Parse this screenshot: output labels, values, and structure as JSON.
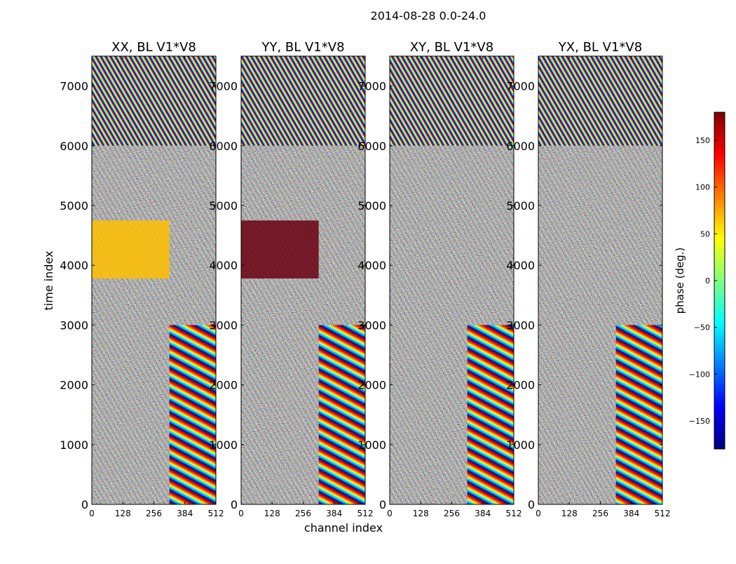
{
  "figure": {
    "suptitle": "2014-08-28 0.0-24.0"
  },
  "colorbar": {
    "label": "phase (deg.)",
    "ticks": [
      150,
      100,
      50,
      0,
      -50,
      -100,
      -150
    ],
    "tick_labels": [
      "150",
      "100",
      "50",
      "0",
      "−50",
      "−100",
      "−150"
    ],
    "range": [
      -180,
      180
    ],
    "colormap": "jet",
    "colors": [
      "#00007f",
      "#0000ff",
      "#007fff",
      "#00ffff",
      "#7fff7f",
      "#ffff00",
      "#ff7f00",
      "#ff0000",
      "#7f0000"
    ]
  },
  "chart_data": [
    {
      "type": "heatmap",
      "title": "XX, BL V1*V8",
      "xlabel": "",
      "ylabel": "time index",
      "xlim": [
        0,
        512
      ],
      "ylim": [
        0,
        7500
      ],
      "xticks": [
        "0",
        "128",
        "256",
        "384",
        "512"
      ],
      "yticks": [
        "0",
        "1000",
        "2000",
        "3000",
        "4000",
        "5000",
        "6000",
        "7000"
      ],
      "value_unit": "phase (deg.)",
      "value_range": [
        -180,
        180
      ]
    },
    {
      "type": "heatmap",
      "title": "YY, BL V1*V8",
      "xlabel": "channel index",
      "ylabel": "",
      "xlim": [
        0,
        512
      ],
      "ylim": [
        0,
        7500
      ],
      "xticks": [
        "0",
        "128",
        "256",
        "384",
        "512"
      ],
      "yticks": [
        "0",
        "1000",
        "2000",
        "3000",
        "4000",
        "5000",
        "6000",
        "7000"
      ],
      "value_unit": "phase (deg.)",
      "value_range": [
        -180,
        180
      ]
    },
    {
      "type": "heatmap",
      "title": "XY, BL V1*V8",
      "xlabel": "",
      "ylabel": "",
      "xlim": [
        0,
        512
      ],
      "ylim": [
        0,
        7500
      ],
      "xticks": [
        "0",
        "128",
        "256",
        "384",
        "512"
      ],
      "yticks": [
        "0",
        "1000",
        "2000",
        "3000",
        "4000",
        "5000",
        "6000",
        "7000"
      ],
      "value_unit": "phase (deg.)",
      "value_range": [
        -180,
        180
      ]
    },
    {
      "type": "heatmap",
      "title": "YX, BL V1*V8",
      "xlabel": "",
      "ylabel": "",
      "xlim": [
        0,
        512
      ],
      "ylim": [
        0,
        7500
      ],
      "xticks": [
        "0",
        "128",
        "256",
        "384",
        "512"
      ],
      "yticks": [
        "0",
        "1000",
        "2000",
        "3000",
        "4000",
        "5000",
        "6000",
        "7000"
      ],
      "value_unit": "phase (deg.)",
      "value_range": [
        -180,
        180
      ]
    }
  ]
}
